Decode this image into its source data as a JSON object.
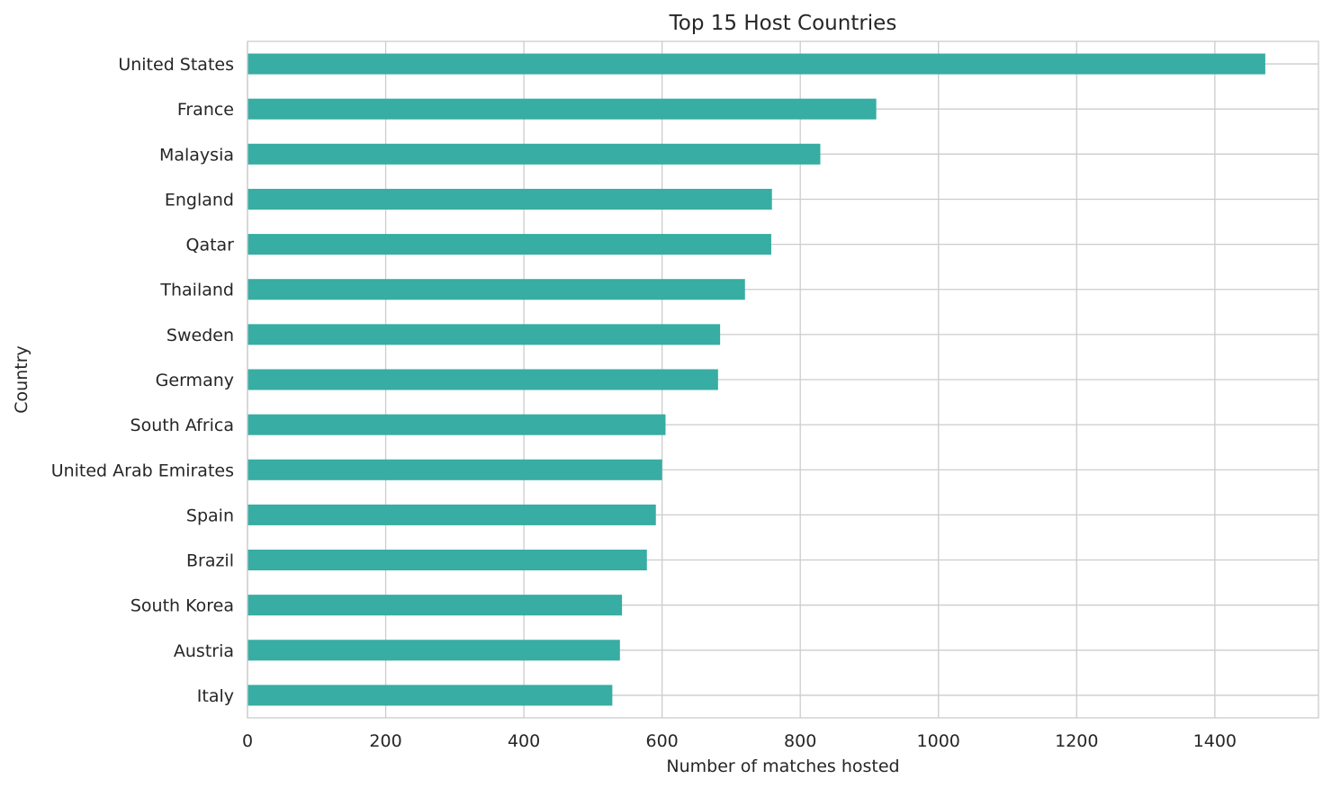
{
  "chart_data": {
    "type": "bar",
    "orientation": "horizontal",
    "title": "Top 15 Host Countries",
    "xlabel": "Number of matches hosted",
    "ylabel": "Country",
    "categories": [
      "United States",
      "France",
      "Malaysia",
      "England",
      "Qatar",
      "Thailand",
      "Sweden",
      "Germany",
      "South Africa",
      "United Arab Emirates",
      "Spain",
      "Brazil",
      "South Korea",
      "Austria",
      "Italy"
    ],
    "values": [
      1473,
      910,
      829,
      759,
      758,
      720,
      684,
      681,
      605,
      600,
      591,
      578,
      542,
      539,
      528
    ],
    "xlim": [
      0,
      1550
    ],
    "xticks": [
      0,
      200,
      400,
      600,
      800,
      1000,
      1200,
      1400
    ],
    "grid": true,
    "bar_color": "#37ada3",
    "grid_color": "#cccccc"
  }
}
